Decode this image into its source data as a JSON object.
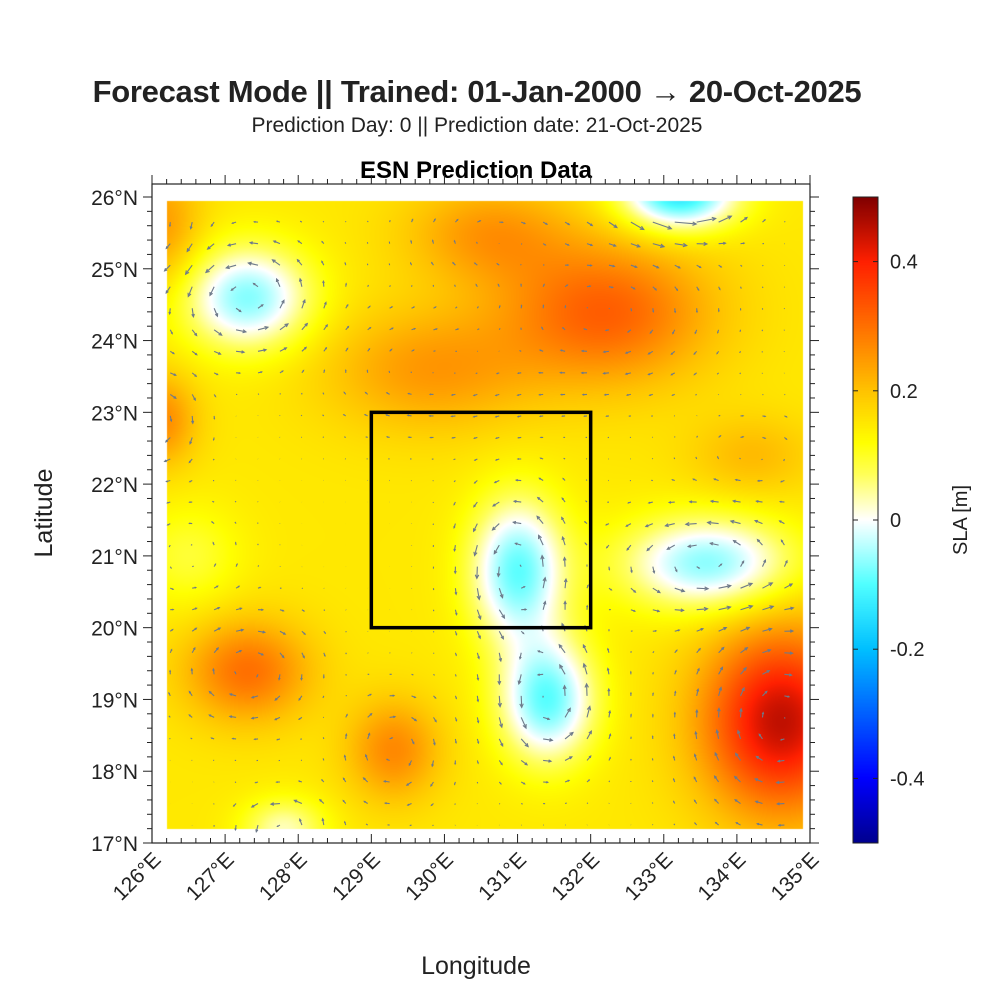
{
  "title": "Forecast Mode || Trained: 01-Jan-2000 → 20-Oct-2025",
  "subtitle": "Prediction Day: 0 || Prediction date: 21-Oct-2025",
  "chart_data": {
    "type": "heatmap",
    "title": "ESN Prediction Data",
    "xlabel": "Longitude",
    "ylabel": "Latitude",
    "xlim": [
      126,
      135
    ],
    "ylim": [
      17,
      26
    ],
    "xticks": [
      "126°E",
      "127°E",
      "128°E",
      "129°E",
      "130°E",
      "131°E",
      "132°E",
      "133°E",
      "134°E",
      "135°E"
    ],
    "yticks": [
      "17°N",
      "18°N",
      "19°N",
      "20°N",
      "21°N",
      "22°N",
      "23°N",
      "24°N",
      "25°N",
      "26°N"
    ],
    "colorbar": {
      "label": "SLA [m]",
      "range": [
        -0.5,
        0.5
      ],
      "ticks": [
        "-0.4",
        "-0.2",
        "0",
        "0.2",
        "0.4"
      ],
      "tick_values": [
        -0.4,
        -0.2,
        0,
        0.2,
        0.4
      ]
    },
    "data_extent": {
      "lon": [
        126.2,
        134.9
      ],
      "lat": [
        17.2,
        25.95
      ]
    },
    "field_base": 0.15,
    "features": [
      {
        "lon": 127.3,
        "lat": 24.6,
        "amp": -0.22,
        "sx": 0.6,
        "sy": 0.5
      },
      {
        "lon": 126.1,
        "lat": 22.9,
        "amp": 0.12,
        "sx": 0.35,
        "sy": 0.45
      },
      {
        "lon": 126.1,
        "lat": 25.6,
        "amp": 0.1,
        "sx": 0.4,
        "sy": 0.6
      },
      {
        "lon": 129.8,
        "lat": 23.6,
        "amp": 0.1,
        "sx": 1.0,
        "sy": 0.6
      },
      {
        "lon": 132.2,
        "lat": 24.4,
        "amp": 0.17,
        "sx": 1.0,
        "sy": 0.7
      },
      {
        "lon": 130.6,
        "lat": 25.5,
        "amp": 0.1,
        "sx": 0.8,
        "sy": 0.5
      },
      {
        "lon": 133.2,
        "lat": 26.05,
        "amp": -0.3,
        "sx": 0.55,
        "sy": 0.35
      },
      {
        "lon": 131.0,
        "lat": 20.8,
        "amp": -0.24,
        "sx": 0.45,
        "sy": 0.7
      },
      {
        "lon": 131.4,
        "lat": 19.0,
        "amp": -0.24,
        "sx": 0.45,
        "sy": 0.6
      },
      {
        "lon": 133.6,
        "lat": 20.9,
        "amp": -0.22,
        "sx": 0.8,
        "sy": 0.45
      },
      {
        "lon": 134.6,
        "lat": 18.7,
        "amp": 0.3,
        "sx": 0.75,
        "sy": 0.9
      },
      {
        "lon": 127.3,
        "lat": 19.4,
        "amp": 0.15,
        "sx": 0.6,
        "sy": 0.5
      },
      {
        "lon": 129.3,
        "lat": 18.3,
        "amp": 0.12,
        "sx": 0.45,
        "sy": 0.5
      },
      {
        "lon": 127.8,
        "lat": 17.2,
        "amp": -0.12,
        "sx": 0.4,
        "sy": 0.3
      },
      {
        "lon": 134.2,
        "lat": 22.4,
        "amp": 0.06,
        "sx": 0.6,
        "sy": 0.4
      },
      {
        "lon": 126.5,
        "lat": 21.0,
        "amp": -0.06,
        "sx": 0.5,
        "sy": 0.5
      }
    ],
    "quiver": {
      "spacing_deg": 0.3,
      "color": "#6e7a8a"
    },
    "box": {
      "lon": [
        129,
        132
      ],
      "lat": [
        20,
        23
      ],
      "color": "#000000"
    }
  }
}
